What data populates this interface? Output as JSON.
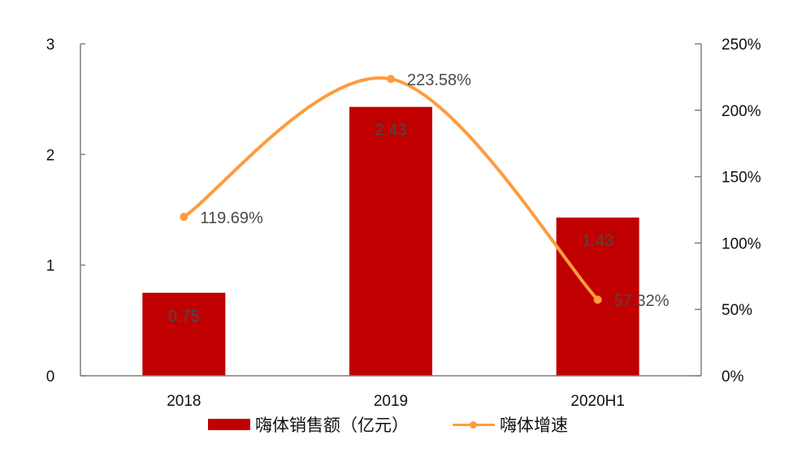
{
  "chart_data": {
    "type": "bar+line",
    "title": "",
    "categories": [
      "2018",
      "2019",
      "2020H1"
    ],
    "series": [
      {
        "name": "嗨体销售额（亿元）",
        "type": "bar",
        "axis": "left",
        "color": "#C00000",
        "values": [
          0.75,
          2.43,
          1.43
        ],
        "labels": [
          "0.75",
          "2.43",
          "1.43"
        ]
      },
      {
        "name": "嗨体增速",
        "type": "line",
        "axis": "right",
        "color": "#FF9B3D",
        "smooth": true,
        "values": [
          119.69,
          223.58,
          57.32
        ],
        "labels": [
          "119.69%",
          "223.58%",
          "57.32%"
        ]
      }
    ],
    "left_axis": {
      "range": [
        0,
        3
      ],
      "ticks": [
        "0",
        "1",
        "2",
        "3"
      ]
    },
    "right_axis": {
      "range": [
        0,
        250
      ],
      "ticks": [
        "0%",
        "50%",
        "100%",
        "150%",
        "200%",
        "250%"
      ]
    },
    "xlabel": "",
    "ylabel": "",
    "grid": false,
    "legend_position": "bottom"
  },
  "legend": {
    "bar_label": "嗨体销售额（亿元）",
    "line_label": "嗨体增速"
  }
}
